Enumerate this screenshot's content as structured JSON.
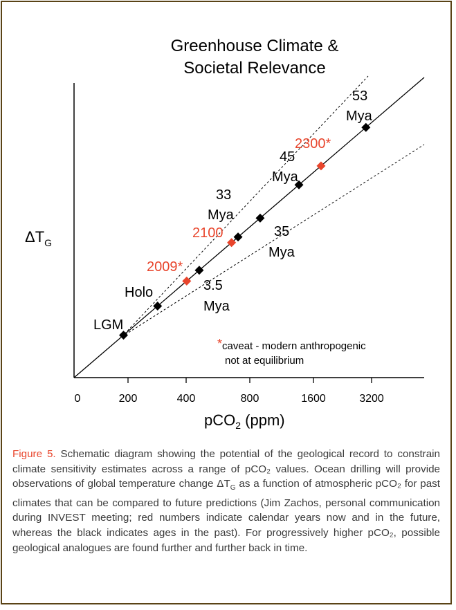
{
  "chart_data": {
    "type": "scatter",
    "title_line1": "Greenhouse Climate &",
    "title_line2": "Societal Relevance",
    "ylabel": "ΔT",
    "ylabel_sub": "G",
    "xlabel": "pCO",
    "xlabel_sub": "2",
    "xlabel_unit": " (ppm)",
    "x_ticks": [
      "0",
      "200",
      "400",
      "800",
      "1600",
      "3200"
    ],
    "x_scale": "log2 (doubling per tick beyond 200)",
    "series": [
      {
        "name": "past climates",
        "color": "#000000",
        "points": [
          {
            "pco2": 190,
            "label_line1": "LGM",
            "label_line2": ""
          },
          {
            "pco2": 280,
            "label_line1": "Holo",
            "label_line2": ""
          },
          {
            "pco2": 450,
            "label_line1": "3.5",
            "label_line2": "Mya"
          },
          {
            "pco2": 700,
            "label_line1": "35",
            "label_line2": "Mya"
          },
          {
            "pco2": 900,
            "label_line1": "33",
            "label_line2": "Mya"
          },
          {
            "pco2": 1400,
            "label_line1": "45",
            "label_line2": "Mya"
          },
          {
            "pco2": 3000,
            "label_line1": "53",
            "label_line2": "Mya"
          }
        ]
      },
      {
        "name": "calendar years",
        "color": "#e8452c",
        "points": [
          {
            "pco2": 390,
            "label_line1": "2009*"
          },
          {
            "pco2": 650,
            "label_line1": "2100"
          },
          {
            "pco2": 1800,
            "label_line1": "2300*"
          }
        ]
      }
    ],
    "caveat_star": "*",
    "caveat_line1": "caveat - modern anthropogenic",
    "caveat_line2": "not at equilibrium"
  },
  "caption": {
    "label": "Figure 5.",
    "text": " Schematic diagram showing the potential of the geological record to constrain climate sensitivity estimates across a range of pCO₂ values. Ocean drilling will provide observations of global temperature change ΔT",
    "sub_g": "G",
    "text2": " as a function of atmospheric pCO₂ for past climates that can be compared to future predictions (Jim Zachos, personal communication during INVEST meeting; red numbers indicate calendar years now and in the future, whereas the black indicates ages in the past). For progressively higher pCO₂, possible geological analogues are found further and further back in time."
  }
}
